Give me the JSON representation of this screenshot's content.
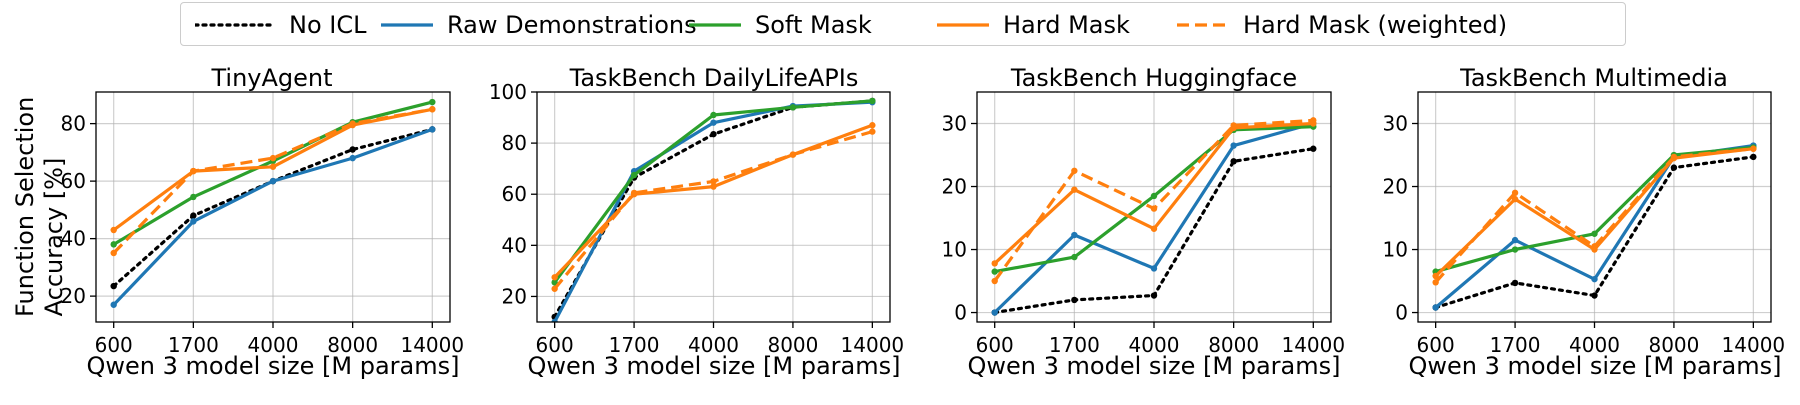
{
  "legend": [
    {
      "label": "No ICL",
      "color": "#000000",
      "style": "dotted"
    },
    {
      "label": "Raw Demonstrations",
      "color": "#1f77b4",
      "style": "solid"
    },
    {
      "label": "Soft Mask",
      "color": "#2ca02c",
      "style": "solid"
    },
    {
      "label": "Hard Mask",
      "color": "#ff7f0e",
      "style": "solid"
    },
    {
      "label": "Hard Mask (weighted)",
      "color": "#ff7f0e",
      "style": "dashed"
    }
  ],
  "shared": {
    "ylabel_line1": "Function Selection",
    "ylabel_line2": "Accuracy [%]",
    "xlabel": "Qwen 3 model size [M params]"
  },
  "chart_data": [
    {
      "type": "line",
      "title": "TinyAgent",
      "xlabel": "Qwen 3 model size [M params]",
      "ylabel": "Function Selection Accuracy [%]",
      "categories": [
        "600",
        "1700",
        "4000",
        "8000",
        "14000"
      ],
      "ylim": [
        11,
        91
      ],
      "yticks": [
        20,
        40,
        60,
        80
      ],
      "grid": true,
      "series": [
        {
          "name": "No ICL",
          "values": [
            23.5,
            48,
            60,
            71,
            78
          ]
        },
        {
          "name": "Raw Demonstrations",
          "values": [
            17,
            46,
            60,
            68,
            78
          ]
        },
        {
          "name": "Soft Mask",
          "values": [
            38,
            54.5,
            67,
            80.5,
            87.5
          ]
        },
        {
          "name": "Hard Mask",
          "values": [
            43,
            63.5,
            65,
            79.5,
            85
          ]
        },
        {
          "name": "Hard Mask (weighted)",
          "values": [
            35,
            63.5,
            68,
            80,
            85
          ]
        }
      ]
    },
    {
      "type": "line",
      "title": "TaskBench DailyLifeAPIs",
      "xlabel": "Qwen 3 model size [M params]",
      "ylabel": "",
      "categories": [
        "600",
        "1700",
        "4000",
        "8000",
        "14000"
      ],
      "ylim": [
        10,
        100
      ],
      "yticks": [
        20,
        40,
        60,
        80,
        100
      ],
      "grid": true,
      "series": [
        {
          "name": "No ICL",
          "values": [
            12,
            66.5,
            83.5,
            94,
            96.5
          ]
        },
        {
          "name": "Raw Demonstrations",
          "values": [
            10,
            69,
            88,
            94.5,
            96
          ]
        },
        {
          "name": "Soft Mask",
          "values": [
            25.5,
            67.5,
            91,
            94,
            96.5
          ]
        },
        {
          "name": "Hard Mask",
          "values": [
            27.5,
            60,
            63,
            75.5,
            87
          ]
        },
        {
          "name": "Hard Mask (weighted)",
          "values": [
            23,
            60.5,
            65,
            75.5,
            84.5
          ]
        }
      ]
    },
    {
      "type": "line",
      "title": "TaskBench Huggingface",
      "xlabel": "Qwen 3 model size [M params]",
      "ylabel": "",
      "categories": [
        "600",
        "1700",
        "4000",
        "8000",
        "14000"
      ],
      "ylim": [
        -1.5,
        35
      ],
      "yticks": [
        0,
        10,
        20,
        30
      ],
      "grid": true,
      "series": [
        {
          "name": "No ICL",
          "values": [
            0,
            2,
            2.7,
            24,
            26
          ]
        },
        {
          "name": "Raw Demonstrations",
          "values": [
            0,
            12.3,
            7,
            26.5,
            30
          ]
        },
        {
          "name": "Soft Mask",
          "values": [
            6.5,
            8.8,
            18.5,
            29,
            29.5
          ]
        },
        {
          "name": "Hard Mask",
          "values": [
            7.8,
            19.5,
            13.3,
            29.3,
            30
          ]
        },
        {
          "name": "Hard Mask (weighted)",
          "values": [
            5,
            22.5,
            16.5,
            29.7,
            30.5
          ]
        }
      ]
    },
    {
      "type": "line",
      "title": "TaskBench Multimedia",
      "xlabel": "Qwen 3 model size [M params]",
      "ylabel": "",
      "categories": [
        "600",
        "1700",
        "4000",
        "8000",
        "14000"
      ],
      "ylim": [
        -1.5,
        35
      ],
      "yticks": [
        0,
        10,
        20,
        30
      ],
      "grid": true,
      "series": [
        {
          "name": "No ICL",
          "values": [
            0.8,
            4.7,
            2.7,
            23,
            24.7
          ]
        },
        {
          "name": "Raw Demonstrations",
          "values": [
            0.8,
            11.5,
            5.3,
            24.7,
            26.5
          ]
        },
        {
          "name": "Soft Mask",
          "values": [
            6.5,
            10,
            12.5,
            25,
            26.2
          ]
        },
        {
          "name": "Hard Mask",
          "values": [
            5.8,
            18,
            10,
            24.5,
            26
          ]
        },
        {
          "name": "Hard Mask (weighted)",
          "values": [
            4.8,
            19,
            10.5,
            24.7,
            26
          ]
        }
      ]
    }
  ]
}
